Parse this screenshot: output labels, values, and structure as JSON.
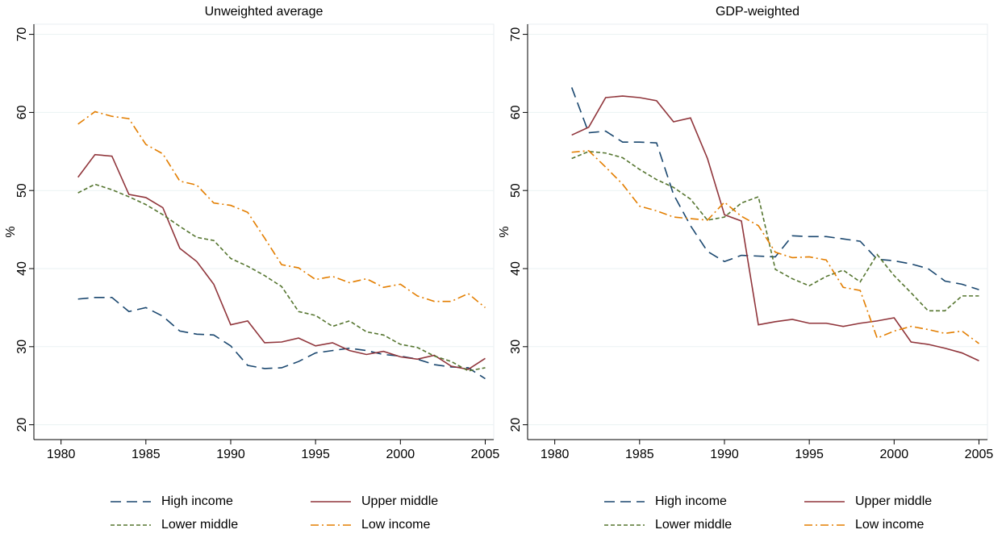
{
  "chart_data": [
    {
      "type": "line",
      "title": "Unweighted average",
      "ylabel": "%",
      "x": [
        1981,
        1982,
        1983,
        1984,
        1985,
        1986,
        1987,
        1988,
        1989,
        1990,
        1991,
        1992,
        1993,
        1994,
        1995,
        1996,
        1997,
        1998,
        1999,
        2000,
        2001,
        2002,
        2003,
        2004,
        2005
      ],
      "series": [
        {
          "name": "High income",
          "color": "#1a476f",
          "line_style": "long-dash",
          "values": [
            36.1,
            36.3,
            36.3,
            34.5,
            35.0,
            33.9,
            32.0,
            31.6,
            31.5,
            30.1,
            27.6,
            27.2,
            27.3,
            28.1,
            29.2,
            29.5,
            29.8,
            29.5,
            29.0,
            28.8,
            28.4,
            27.7,
            27.4,
            27.3,
            25.9
          ]
        },
        {
          "name": "Upper middle",
          "color": "#90353b",
          "line_style": "solid",
          "values": [
            51.7,
            54.6,
            54.4,
            49.5,
            49.1,
            47.8,
            42.6,
            40.9,
            38.0,
            32.8,
            33.3,
            30.5,
            30.6,
            31.1,
            30.1,
            30.5,
            29.5,
            29.0,
            29.4,
            28.7,
            28.4,
            28.9,
            27.5,
            27.1,
            28.5
          ]
        },
        {
          "name": "Lower middle",
          "color": "#55752f",
          "line_style": "short-dash",
          "values": [
            49.7,
            50.8,
            50.1,
            49.2,
            48.2,
            46.9,
            45.4,
            44.0,
            43.6,
            41.3,
            40.3,
            39.1,
            37.7,
            34.5,
            34.0,
            32.6,
            33.3,
            31.9,
            31.5,
            30.3,
            29.9,
            28.8,
            28.1,
            26.9,
            27.3
          ]
        },
        {
          "name": "Low income",
          "color": "#e37e00",
          "line_style": "dash-dot",
          "values": [
            58.5,
            60.1,
            59.5,
            59.2,
            55.9,
            54.7,
            51.2,
            50.7,
            48.4,
            48.1,
            47.2,
            43.9,
            40.5,
            40.1,
            38.6,
            39.0,
            38.2,
            38.7,
            37.6,
            38.0,
            36.5,
            35.8,
            35.8,
            36.8,
            35.0
          ]
        }
      ],
      "xlim": [
        1978.4,
        2005.5
      ],
      "ylim": [
        18.1,
        71.3
      ],
      "xticks": [
        1980,
        1985,
        1990,
        1995,
        2000,
        2005
      ],
      "yticks": [
        20,
        30,
        40,
        50,
        60,
        70
      ],
      "grid": true,
      "legend": "bottom"
    },
    {
      "type": "line",
      "title": "GDP-weighted",
      "ylabel": "%",
      "x": [
        1981,
        1982,
        1983,
        1984,
        1985,
        1986,
        1987,
        1988,
        1989,
        1990,
        1991,
        1992,
        1993,
        1994,
        1995,
        1996,
        1997,
        1998,
        1999,
        2000,
        2001,
        2002,
        2003,
        2004,
        2005
      ],
      "series": [
        {
          "name": "High income",
          "color": "#1a476f",
          "line_style": "long-dash",
          "values": [
            63.2,
            57.4,
            57.6,
            56.2,
            56.2,
            56.1,
            49.5,
            45.5,
            42.2,
            40.9,
            41.7,
            41.6,
            41.5,
            44.2,
            44.1,
            44.1,
            43.8,
            43.5,
            41.2,
            41.0,
            40.6,
            40.0,
            38.4,
            38.0,
            37.3
          ]
        },
        {
          "name": "Upper middle",
          "color": "#90353b",
          "line_style": "solid",
          "values": [
            57.1,
            58.1,
            61.9,
            62.1,
            61.9,
            61.5,
            58.8,
            59.3,
            54.1,
            46.9,
            46.1,
            32.8,
            33.2,
            33.5,
            33.0,
            33.0,
            32.6,
            33.0,
            33.3,
            33.7,
            30.6,
            30.3,
            29.8,
            29.2,
            28.2
          ]
        },
        {
          "name": "Lower middle",
          "color": "#55752f",
          "line_style": "short-dash",
          "values": [
            54.1,
            55.0,
            54.8,
            54.2,
            52.7,
            51.4,
            50.4,
            48.9,
            46.2,
            46.6,
            48.4,
            49.2,
            39.9,
            38.7,
            37.8,
            39.0,
            39.8,
            38.3,
            41.8,
            39.1,
            36.9,
            34.6,
            34.6,
            36.5,
            36.5
          ]
        },
        {
          "name": "Low income",
          "color": "#e37e00",
          "line_style": "dash-dot",
          "values": [
            54.9,
            55.1,
            53.0,
            50.8,
            48.0,
            47.4,
            46.6,
            46.4,
            46.2,
            48.5,
            46.7,
            45.5,
            42.1,
            41.4,
            41.5,
            41.1,
            37.6,
            37.2,
            31.1,
            32.0,
            32.6,
            32.2,
            31.7,
            32.0,
            30.4
          ]
        }
      ],
      "xlim": [
        1978.4,
        2005.5
      ],
      "ylim": [
        18.1,
        71.3
      ],
      "xticks": [
        1980,
        1985,
        1990,
        1995,
        2000,
        2005
      ],
      "yticks": [
        20,
        30,
        40,
        50,
        60,
        70
      ],
      "grid": true,
      "legend": "bottom"
    }
  ]
}
